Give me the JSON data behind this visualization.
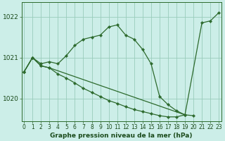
{
  "xlabel": "Graphe pression niveau de la mer (hPa)",
  "background_color": "#cceee8",
  "grid_color": "#99ccbb",
  "line_color": "#2d6a2d",
  "ylim": [
    1019.45,
    1022.35
  ],
  "yticks": [
    1020,
    1021,
    1022
  ],
  "xlim": [
    -0.3,
    23.3
  ],
  "xticks": [
    0,
    1,
    2,
    3,
    4,
    5,
    6,
    7,
    8,
    9,
    10,
    11,
    12,
    13,
    14,
    15,
    16,
    17,
    18,
    19,
    20,
    21,
    22,
    23
  ],
  "line1_x": [
    0,
    1,
    2,
    3,
    4,
    5,
    6,
    7,
    8,
    9,
    10,
    11,
    12,
    13,
    14,
    15,
    16,
    17,
    18,
    19,
    21,
    22,
    23
  ],
  "line1_y": [
    1020.65,
    1021.0,
    1020.85,
    1020.9,
    1020.85,
    1021.05,
    1021.3,
    1021.45,
    1021.5,
    1021.55,
    1021.75,
    1021.8,
    1021.55,
    1021.45,
    1021.2,
    1020.85,
    1020.05,
    1019.85,
    1019.7,
    1019.6,
    1021.85,
    1021.9,
    1022.1
  ],
  "line2_x": [
    0,
    1,
    2,
    3,
    19,
    20
  ],
  "line2_y": [
    1020.65,
    1021.0,
    1020.8,
    1020.75,
    1019.6,
    1019.58
  ],
  "line3_x": [
    0,
    1,
    2,
    3,
    4,
    5,
    6,
    7,
    8,
    9,
    10,
    11,
    12,
    13,
    14,
    15,
    16,
    17,
    18,
    19
  ],
  "line3_y": [
    1020.65,
    1021.0,
    1020.8,
    1020.75,
    1020.6,
    1020.5,
    1020.38,
    1020.25,
    1020.15,
    1020.05,
    1019.95,
    1019.88,
    1019.8,
    1019.73,
    1019.68,
    1019.63,
    1019.58,
    1019.55,
    1019.55,
    1019.6
  ],
  "tick_fontsize": 5.5,
  "ylabel_fontsize": 6.5,
  "xlabel_fontsize": 6.5,
  "marker": "D",
  "markersize": 2.2,
  "linewidth": 0.9
}
